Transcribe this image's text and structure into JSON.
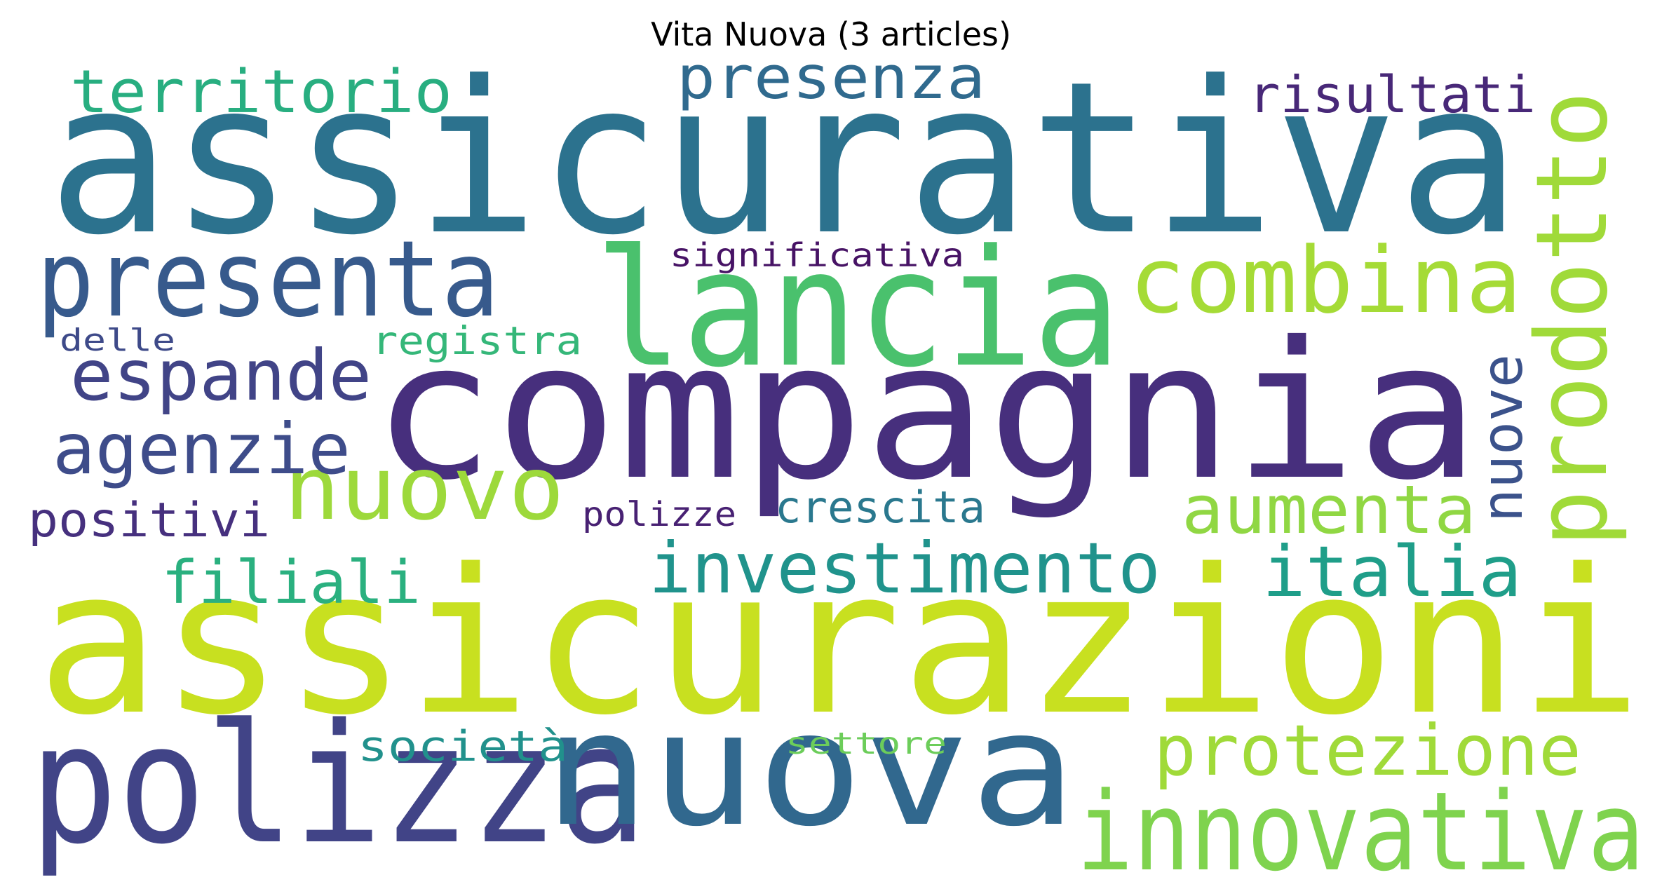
{
  "title": "Vita Nuova (3 articles)",
  "words": [
    {
      "text": "assicurativa",
      "color": "#2c728e"
    },
    {
      "text": "assicurazioni",
      "color": "#c8e020"
    },
    {
      "text": "compagnia",
      "color": "#472f7d"
    },
    {
      "text": "lancia",
      "color": "#4ac16d"
    },
    {
      "text": "polizza",
      "color": "#414487"
    },
    {
      "text": "nuova",
      "color": "#31688e"
    },
    {
      "text": "presenta",
      "color": "#375a8c"
    },
    {
      "text": "innovativa",
      "color": "#7fd34e"
    },
    {
      "text": "prodotto",
      "color": "#a0da39"
    },
    {
      "text": "combina",
      "color": "#a5db36"
    },
    {
      "text": "nuovo",
      "color": "#9dd93b"
    },
    {
      "text": "investimento",
      "color": "#20938c"
    },
    {
      "text": "italia",
      "color": "#1f9e89"
    },
    {
      "text": "protezione",
      "color": "#a0da39"
    },
    {
      "text": "espande",
      "color": "#414487"
    },
    {
      "text": "agenzie",
      "color": "#3e4c8a"
    },
    {
      "text": "presenza",
      "color": "#306a8e"
    },
    {
      "text": "territorio",
      "color": "#28ae80"
    },
    {
      "text": "aumenta",
      "color": "#90d743"
    },
    {
      "text": "filiali",
      "color": "#2ab07f"
    },
    {
      "text": "nuove",
      "color": "#3b528b"
    },
    {
      "text": "risultati",
      "color": "#482878"
    },
    {
      "text": "positivi",
      "color": "#46307e"
    },
    {
      "text": "crescita",
      "color": "#2a788e"
    },
    {
      "text": "società",
      "color": "#21918c"
    },
    {
      "text": "registra",
      "color": "#35b779"
    },
    {
      "text": "significativa",
      "color": "#471365"
    },
    {
      "text": "polizze",
      "color": "#482173"
    },
    {
      "text": "delle",
      "color": "#3e4a89"
    },
    {
      "text": "settore",
      "color": "#6ccd5a"
    }
  ]
}
